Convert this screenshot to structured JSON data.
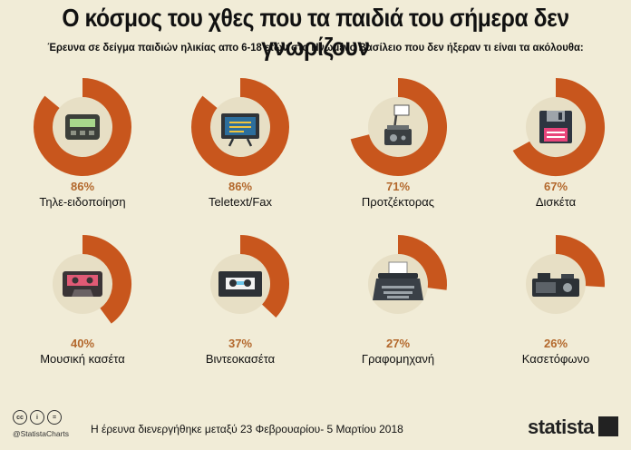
{
  "title": "Ο κόσμος του χθες που τα παιδιά του σήμερα δεν γνωρίζουν",
  "subtitle": "Έρευνα σε δείγμα παιδιών ηλικίας απο 6-18 ετών στο Ηνωμένο Βασίλειο που δεν ήξεραν τι είναι τα ακόλουθα:",
  "footer": {
    "handle": "@StatistaCharts",
    "note": "Η έρευνα διενεργήθηκε μεταξύ 23 Φεβρουαρίου- 5 Μαρτίου 2018",
    "brand": "statista",
    "license_icons": [
      "cc",
      "i",
      "="
    ]
  },
  "colors": {
    "background": "#f1ecd7",
    "ring": "#c8561d",
    "disc": "#e7dfc5",
    "percent_text": "#b3682c"
  },
  "chart_data": {
    "type": "pie",
    "unit": "%",
    "categories": [
      "Τηλε-ειδοποίηση",
      "Teletext/Fax",
      "Προτζέκτορας",
      "Δισκέτα",
      "Μουσική κασέτα",
      "Βιντεοκασέτα",
      "Γραφομηχανή",
      "Κασετόφωνο"
    ],
    "values": [
      86,
      86,
      71,
      67,
      40,
      37,
      27,
      26
    ],
    "labels": [
      "86%",
      "86%",
      "71%",
      "67%",
      "40%",
      "37%",
      "27%",
      "26%"
    ],
    "icons": [
      "pager-icon",
      "tv-icon",
      "projector-icon",
      "floppy-disk-icon",
      "music-cassette-icon",
      "videotape-icon",
      "typewriter-icon",
      "cassette-player-icon"
    ]
  }
}
